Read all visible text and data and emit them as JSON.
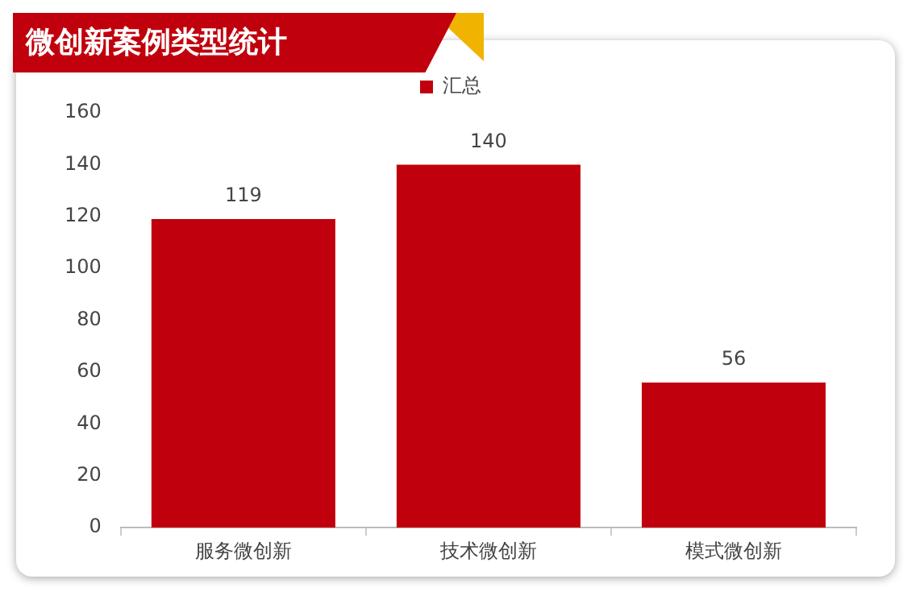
{
  "chart_data": {
    "type": "bar",
    "title": "微创新案例类型统计",
    "categories": [
      "服务微创新",
      "技术微创新",
      "模式微创新"
    ],
    "series": [
      {
        "name": "汇总",
        "color": "#c0000c",
        "values": [
          119,
          140,
          56
        ]
      }
    ],
    "ylim": [
      0,
      160
    ],
    "yticks": [
      0,
      20,
      40,
      60,
      80,
      100,
      120,
      140,
      160
    ],
    "grid": false,
    "legend": "top",
    "data_labels": true
  }
}
